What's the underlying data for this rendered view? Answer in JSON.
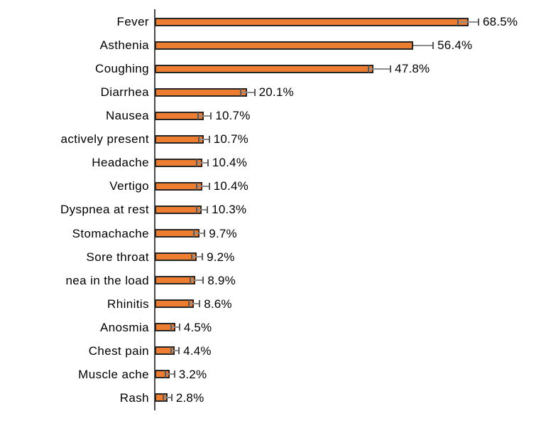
{
  "chart_data": {
    "type": "bar",
    "orientation": "horizontal",
    "title": "",
    "xlabel": "",
    "ylabel": "",
    "xlim": [
      0,
      80
    ],
    "grid": false,
    "legend": false,
    "categories": [
      "Fever",
      "Asthenia",
      "Coughing",
      "Diarrhea",
      "Nausea",
      "actively present",
      "Headache",
      "Vertigo",
      "Dyspnea at rest",
      "Stomachache",
      "Sore throat",
      "nea in the load",
      "Rhinitis",
      "Anosmia",
      "Chest pain",
      "Muscle ache",
      "Rash"
    ],
    "values": [
      68.5,
      56.4,
      47.8,
      20.1,
      10.7,
      10.7,
      10.4,
      10.4,
      10.3,
      9.7,
      9.2,
      8.9,
      8.6,
      4.5,
      4.4,
      3.2,
      2.8
    ],
    "value_labels": [
      "68.5%",
      "56.4%",
      "47.8%",
      "20.1%",
      "10.7%",
      "10.7%",
      "10.4%",
      "10.4%",
      "10.3%",
      "9.7%",
      "9.2%",
      "8.9%",
      "8.6%",
      "4.5%",
      "4.4%",
      "3.2%",
      "2.8%"
    ],
    "error_minus": [
      2.3,
      0,
      1.1,
      1.4,
      1.2,
      1.1,
      1.2,
      1.2,
      1.2,
      1.1,
      1.1,
      1.1,
      1.1,
      0.9,
      0.9,
      0.8,
      0.9
    ],
    "error_plus": [
      2.2,
      4.4,
      3.7,
      1.7,
      1.6,
      1.2,
      1.2,
      1.5,
      1.2,
      1.2,
      1.2,
      1.7,
      1.2,
      0.9,
      0.9,
      1.1,
      0.9
    ]
  },
  "colors": {
    "bar_fill": "#ED7D31",
    "bar_border": "#262626",
    "error_line": "#8C8C8C",
    "error_cap": "#595959",
    "axis_line": "#4A4A4A",
    "text": "#000000",
    "background": "#FFFFFF"
  }
}
